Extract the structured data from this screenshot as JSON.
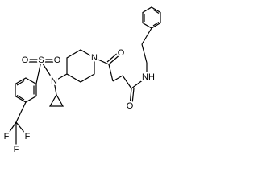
{
  "atoms": [
    {
      "label": "O"
    },
    {
      "label": "N"
    },
    {
      "label": "NH"
    },
    {
      "label": "O"
    },
    {
      "label": "O"
    },
    {
      "label": "S"
    },
    {
      "label": "O"
    },
    {
      "label": "N"
    },
    {
      "label": "F"
    },
    {
      "label": "F"
    },
    {
      "label": "F"
    }
  ]
}
